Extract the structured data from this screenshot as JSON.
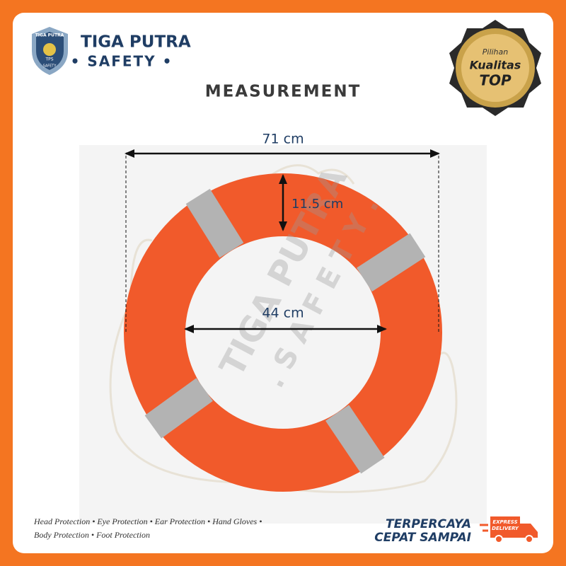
{
  "brand": {
    "name": "TIGA PUTRA",
    "tagline": "• SAFETY •",
    "shield_top": "TIGA PUTRA",
    "shield_mid": "TPS",
    "shield_bottom": "SAFETY"
  },
  "badge": {
    "line1": "Pilihan",
    "line2": "Kualitas",
    "line3": "TOP"
  },
  "title": "MEASUREMENT",
  "measurements": {
    "outer": "71 cm",
    "width": "11.5 cm",
    "inner": "44 cm"
  },
  "watermark": {
    "line1": "TIGA PUTRA",
    "line2": ". S A F E T Y ."
  },
  "footer": {
    "line1": "Head Protection • Eye Protection • Ear Protection • Hand Gloves •",
    "line2": "Body Protection • Foot Protection",
    "slogan1": "TERPERCAYA",
    "slogan2": "CEPAT SAMPAI",
    "truck1": "EXPRESS",
    "truck2": "DELIVERY"
  }
}
